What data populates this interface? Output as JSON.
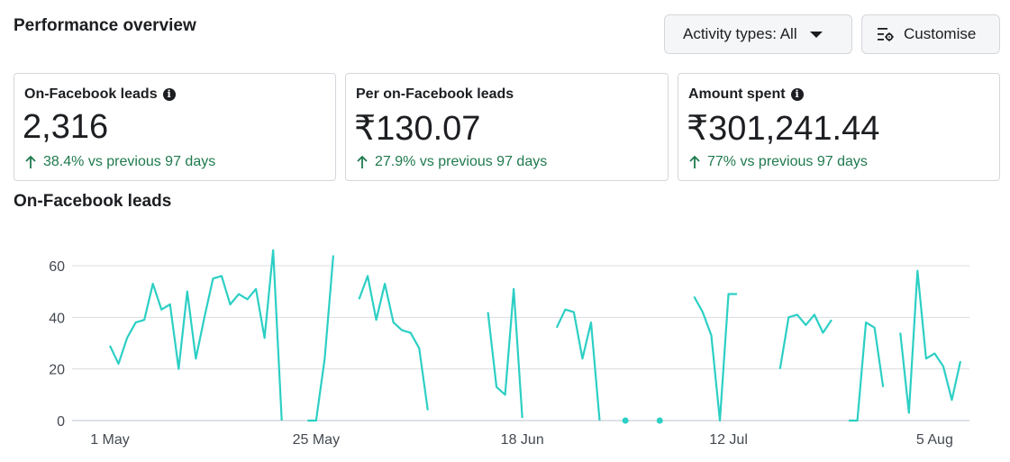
{
  "header": {
    "title": "Performance overview"
  },
  "toolbar": {
    "activity_label": "Activity types: All",
    "customise_label": "Customise"
  },
  "cards": [
    {
      "label": "On-Facebook leads",
      "has_info": true,
      "value": "2,316",
      "delta": "38.4% vs previous 97 days"
    },
    {
      "label": "Per on-Facebook leads",
      "has_info": false,
      "value": "₹130.07",
      "delta": "27.9% vs previous 97 days"
    },
    {
      "label": "Amount spent",
      "has_info": true,
      "value": "₹301,241.44",
      "delta": "77% vs previous 97 days"
    }
  ],
  "colors": {
    "line": "#2ccfc4",
    "delta": "#1f7a4e",
    "grid": "#dadde1"
  },
  "chart_data": {
    "type": "line",
    "title": "On-Facebook leads",
    "ylim": [
      0,
      60
    ],
    "yticks": [
      0,
      20,
      40,
      60
    ],
    "xticks": [
      {
        "label": "1 May",
        "day": 0
      },
      {
        "label": "25 May",
        "day": 24
      },
      {
        "label": "18 Jun",
        "day": 48
      },
      {
        "label": "12 Jul",
        "day": 72
      },
      {
        "label": "5 Aug",
        "day": 96
      }
    ],
    "grid": true,
    "series": [
      {
        "values": [
          29,
          22,
          32,
          38,
          39,
          53,
          43,
          45,
          20,
          50,
          24,
          40,
          55,
          56,
          45,
          49,
          47,
          51,
          32,
          66,
          0,
          null,
          null,
          0,
          0,
          24,
          64,
          null,
          null,
          47,
          56,
          39,
          53,
          38,
          35,
          34,
          28,
          4,
          null,
          null,
          null,
          null,
          null,
          null,
          42,
          13,
          10,
          51,
          1,
          null,
          null,
          null,
          36,
          43,
          42,
          24,
          38,
          0,
          null,
          null,
          0,
          null,
          null,
          null,
          0,
          null,
          null,
          null,
          48,
          42,
          33,
          0,
          49,
          49,
          null,
          null,
          null,
          null,
          20,
          40,
          41,
          37,
          41,
          34,
          39,
          null,
          0,
          0,
          38,
          36,
          13,
          null,
          34,
          3,
          58,
          24,
          26,
          21,
          8,
          23
        ]
      }
    ]
  }
}
